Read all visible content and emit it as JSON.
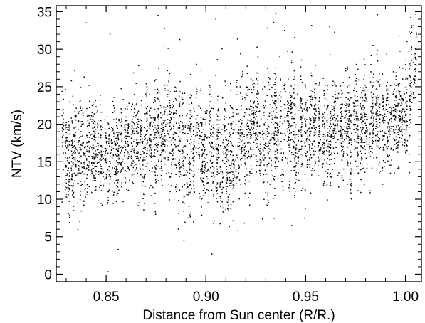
{
  "chart_data": {
    "type": "scatter",
    "title": "",
    "xlabel": "Distance from Sun center (R/R.)",
    "ylabel": "NTV (km/s)",
    "xlim": [
      0.825,
      1.008
    ],
    "ylim": [
      -1.0,
      35.8
    ],
    "x_ticks": [
      0.85,
      0.9,
      0.95,
      1.0
    ],
    "x_tick_labels": [
      "0.85",
      "0.90",
      "0.95",
      "1.00"
    ],
    "y_ticks": [
      0,
      5,
      10,
      15,
      20,
      25,
      30,
      35
    ],
    "y_tick_labels": [
      "0",
      "5",
      "10",
      "15",
      "20",
      "25",
      "30",
      "35"
    ],
    "grid": false,
    "legend": "none",
    "marker_color": "#000000",
    "series": [
      {
        "x_range": [
          0.828,
          1.006
        ],
        "point_count": 4200,
        "trend": {
          "x": [
            0.83,
            0.85,
            0.875,
            0.9,
            0.915,
            0.925,
            0.95,
            0.975,
            1.0,
            1.006
          ],
          "y_mean": [
            16.5,
            16.5,
            17.5,
            17.0,
            16.5,
            18.0,
            19.0,
            19.5,
            21.0,
            29.0
          ],
          "y_spread": [
            3.0,
            3.0,
            3.2,
            3.3,
            3.6,
            3.3,
            3.0,
            3.0,
            2.7,
            3.2
          ]
        },
        "outliers": [
          {
            "x": 0.84,
            "y": 33.5
          },
          {
            "x": 0.852,
            "y": 32.0
          },
          {
            "x": 0.876,
            "y": 34.5
          },
          {
            "x": 0.905,
            "y": 34.0
          },
          {
            "x": 0.935,
            "y": 34.8
          },
          {
            "x": 0.962,
            "y": 33.0
          },
          {
            "x": 0.986,
            "y": 34.6
          },
          {
            "x": 0.889,
            "y": 4.5
          },
          {
            "x": 0.903,
            "y": 2.7
          },
          {
            "x": 0.916,
            "y": 5.8
          },
          {
            "x": 0.856,
            "y": 3.3
          },
          {
            "x": 0.943,
            "y": 6.5
          }
        ]
      }
    ]
  }
}
